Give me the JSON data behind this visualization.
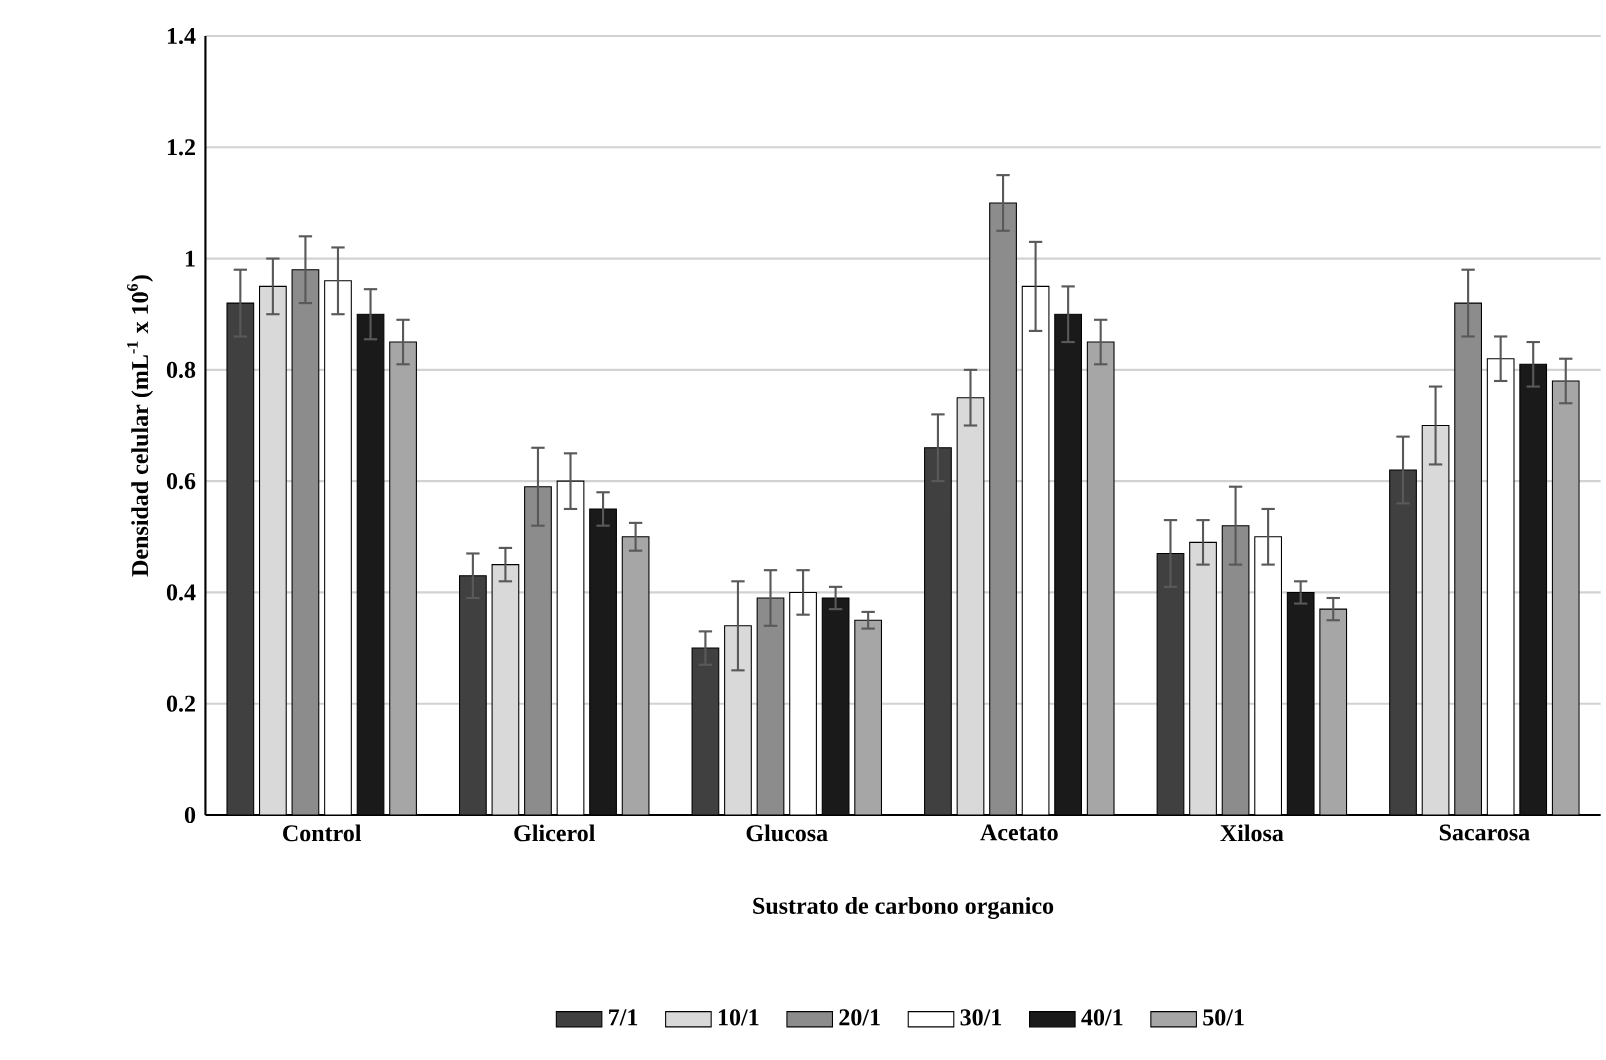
{
  "chart_data": {
    "type": "bar",
    "xlabel": "Sustrato de carbono organico",
    "ylabel": "Densidad celular (mL$^{-1}$ x 10$^{6}$)",
    "categories": [
      "Control",
      "Glicerol",
      "Glucosa",
      "Acetato",
      "Xilosa",
      "Sacarosa"
    ],
    "series": [
      {
        "name": "7/1",
        "color": "#404040",
        "values": [
          0.92,
          0.43,
          0.3,
          0.66,
          0.47,
          0.62
        ],
        "errors": [
          0.06,
          0.04,
          0.03,
          0.06,
          0.06,
          0.06
        ]
      },
      {
        "name": "10/1",
        "color": "#d9d9d9",
        "values": [
          0.95,
          0.45,
          0.34,
          0.75,
          0.49,
          0.7
        ],
        "errors": [
          0.05,
          0.03,
          0.08,
          0.05,
          0.04,
          0.07
        ]
      },
      {
        "name": "20/1",
        "color": "#8c8c8c",
        "values": [
          0.98,
          0.59,
          0.39,
          1.1,
          0.52,
          0.92
        ],
        "errors": [
          0.06,
          0.07,
          0.05,
          0.05,
          0.07,
          0.06
        ]
      },
      {
        "name": "30/1",
        "color": "#ffffff",
        "values": [
          0.96,
          0.6,
          0.4,
          0.95,
          0.5,
          0.82
        ],
        "errors": [
          0.06,
          0.05,
          0.04,
          0.08,
          0.05,
          0.04
        ]
      },
      {
        "name": "40/1",
        "color": "#1a1a1a",
        "values": [
          0.9,
          0.55,
          0.39,
          0.9,
          0.4,
          0.81
        ],
        "errors": [
          0.045,
          0.03,
          0.02,
          0.05,
          0.02,
          0.04
        ]
      },
      {
        "name": "50/1",
        "color": "#a6a6a6",
        "values": [
          0.85,
          0.5,
          0.35,
          0.85,
          0.37,
          0.78
        ],
        "errors": [
          0.04,
          0.025,
          0.015,
          0.04,
          0.02,
          0.04
        ]
      }
    ],
    "ylim": [
      0,
      1.4
    ],
    "yticks": [
      0,
      0.2,
      0.4,
      0.6,
      0.8,
      1,
      1.2,
      1.4
    ],
    "grid": "y",
    "legend": "bottom"
  }
}
